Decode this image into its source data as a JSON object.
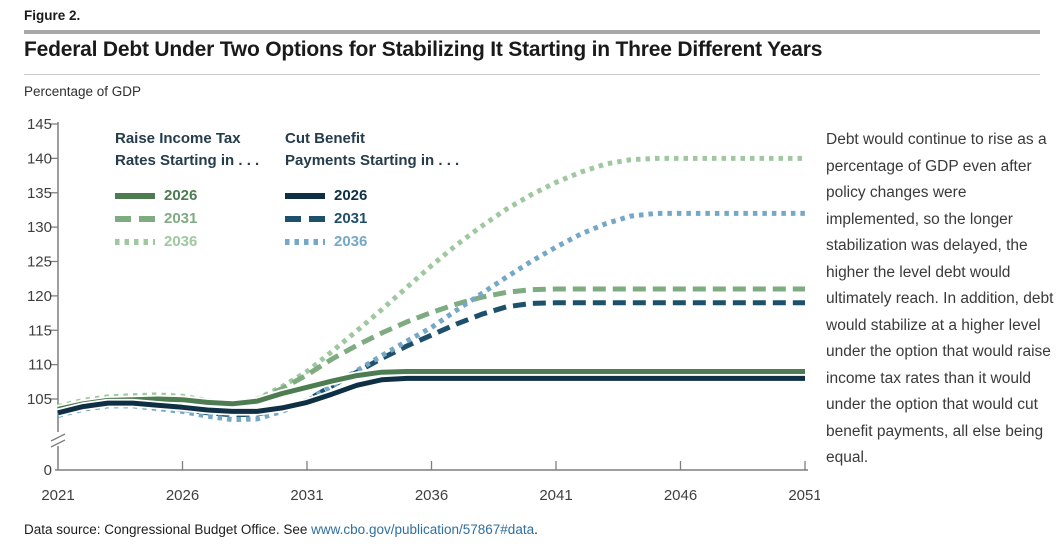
{
  "figure_label": "Figure 2.",
  "title": "Federal Debt Under Two Options for Stabilizing It Starting in Three Different Years",
  "units_label": "Percentage of GDP",
  "legend": {
    "columns": [
      {
        "header_line1": "Raise Income Tax",
        "header_line2": "Rates Starting in . . .",
        "items": [
          {
            "label": "2026",
            "dash": "solid",
            "color": "#4d7c51"
          },
          {
            "label": "2031",
            "dash": "dashed",
            "color": "#7fab80"
          },
          {
            "label": "2036",
            "dash": "dotted",
            "color": "#a0c8a0"
          }
        ]
      },
      {
        "header_line1": "Cut Benefit",
        "header_line2": "Payments Starting in . . .",
        "items": [
          {
            "label": "2026",
            "dash": "solid",
            "color": "#0f2f45"
          },
          {
            "label": "2031",
            "dash": "dashed",
            "color": "#1d506b"
          },
          {
            "label": "2036",
            "dash": "dotted",
            "color": "#75a8c6"
          }
        ]
      }
    ]
  },
  "side_note": "Debt would continue to rise as a percentage of GDP even after policy changes were implemented, so the longer stabilization was delayed, the higher the level debt would ultimately reach. In addition, debt would stabilize at a higher level under the option that would raise income tax rates than it would under the option that would cut benefit payments, all else being equal.",
  "footer": {
    "prefix": "Data source: Congressional Budget Office. See ",
    "link": "www.cbo.gov/publication/57867#data",
    "suffix": "."
  },
  "colors": {
    "raise_2026": "#4d7c51",
    "raise_2031": "#7fab80",
    "raise_2036": "#a0c8a0",
    "cut_2026": "#0f2f45",
    "cut_2031": "#1d506b",
    "cut_2036": "#75a8c6",
    "axis": "#7f7f7f",
    "axis_text": "#3f3f3f",
    "legend_header": "#253c4b",
    "link": "#2f6f9f"
  },
  "chart_data": {
    "type": "line",
    "title": "Federal Debt Under Two Options for Stabilizing It Starting in Three Different Years",
    "ylabel": "Percentage of GDP",
    "x": [
      2021,
      2022,
      2023,
      2024,
      2025,
      2026,
      2027,
      2028,
      2029,
      2030,
      2031,
      2032,
      2033,
      2034,
      2035,
      2036,
      2037,
      2038,
      2039,
      2040,
      2041,
      2042,
      2043,
      2044,
      2045,
      2046,
      2047,
      2048,
      2049,
      2050,
      2051
    ],
    "x_tick_labels": [
      2021,
      2026,
      2031,
      2036,
      2041,
      2046,
      2051
    ],
    "y_ticks": [
      0,
      105,
      110,
      115,
      120,
      125,
      130,
      135,
      140,
      145
    ],
    "ylim_display": [
      105,
      145
    ],
    "axis_break_above_zero": true,
    "grid": false,
    "legend_position": "top-left-inside",
    "series": [
      {
        "name": "Raise Income Tax Rates Starting in 2026",
        "group": "raise",
        "start_year": 2026,
        "dash": "solid",
        "color": "#4d7c51",
        "stabilized_level": 109,
        "values": [
          103.5,
          104.3,
          104.8,
          104.9,
          105.0,
          104.9,
          104.5,
          104.3,
          104.7,
          105.8,
          106.7,
          107.6,
          108.4,
          108.9,
          109,
          109,
          109,
          109,
          109,
          109,
          109,
          109,
          109,
          109,
          109,
          109,
          109,
          109,
          109,
          109,
          109
        ]
      },
      {
        "name": "Raise Income Tax Rates Starting in 2031",
        "group": "raise",
        "start_year": 2031,
        "dash": "dashed",
        "color": "#7fab80",
        "stabilized_level": 121,
        "values": [
          103.6,
          104.4,
          104.9,
          105.0,
          105.1,
          105.0,
          104.6,
          104.4,
          104.9,
          106.5,
          108.5,
          110.8,
          112.8,
          114.6,
          116.2,
          117.6,
          118.8,
          119.8,
          120.5,
          120.9,
          121,
          121,
          121,
          121,
          121,
          121,
          121,
          121,
          121,
          121,
          121
        ]
      },
      {
        "name": "Raise Income Tax Rates Starting in 2036",
        "group": "raise",
        "start_year": 2036,
        "dash": "dotted",
        "color": "#a0c8a0",
        "stabilized_level": 140,
        "values": [
          103.9,
          104.8,
          105.3,
          105.5,
          105.6,
          105.4,
          104.8,
          104.4,
          105.0,
          106.8,
          109.0,
          111.9,
          114.9,
          118.0,
          121.2,
          124.4,
          127.4,
          130.1,
          132.6,
          134.7,
          136.5,
          138.0,
          139.2,
          139.8,
          140,
          140,
          140,
          140,
          140,
          140,
          140
        ]
      },
      {
        "name": "Cut Benefit Payments Starting in 2026",
        "group": "cut",
        "start_year": 2026,
        "dash": "solid",
        "color": "#0f2f45",
        "stabilized_level": 108,
        "values": [
          103.0,
          103.9,
          104.4,
          104.4,
          104.1,
          103.8,
          103.4,
          103.2,
          103.2,
          103.7,
          104.5,
          105.7,
          107.0,
          107.8,
          108,
          108,
          108,
          108,
          108,
          108,
          108,
          108,
          108,
          108,
          108,
          108,
          108,
          108,
          108,
          108,
          108
        ]
      },
      {
        "name": "Cut Benefit Payments Starting in 2031",
        "group": "cut",
        "start_year": 2031,
        "dash": "dashed",
        "color": "#1d506b",
        "stabilized_level": 119,
        "values": [
          102.8,
          103.7,
          104.2,
          104.2,
          103.9,
          103.5,
          103.0,
          102.7,
          102.8,
          103.6,
          104.8,
          106.9,
          108.9,
          110.9,
          112.7,
          114.3,
          115.9,
          117.3,
          118.4,
          118.9,
          119,
          119,
          119,
          119,
          119,
          119,
          119,
          119,
          119,
          119,
          119
        ]
      },
      {
        "name": "Cut Benefit Payments Starting in 2036",
        "group": "cut",
        "start_year": 2036,
        "dash": "dotted",
        "color": "#75a8c6",
        "stabilized_level": 132,
        "values": [
          102.6,
          103.5,
          104.0,
          104.0,
          103.6,
          103.2,
          102.5,
          102.0,
          102.1,
          103.2,
          104.7,
          106.9,
          109.1,
          111.3,
          113.4,
          115.4,
          117.9,
          120.3,
          122.7,
          125.0,
          127.1,
          129.0,
          130.5,
          131.6,
          132,
          132,
          132,
          132,
          132,
          132,
          132
        ]
      }
    ]
  }
}
